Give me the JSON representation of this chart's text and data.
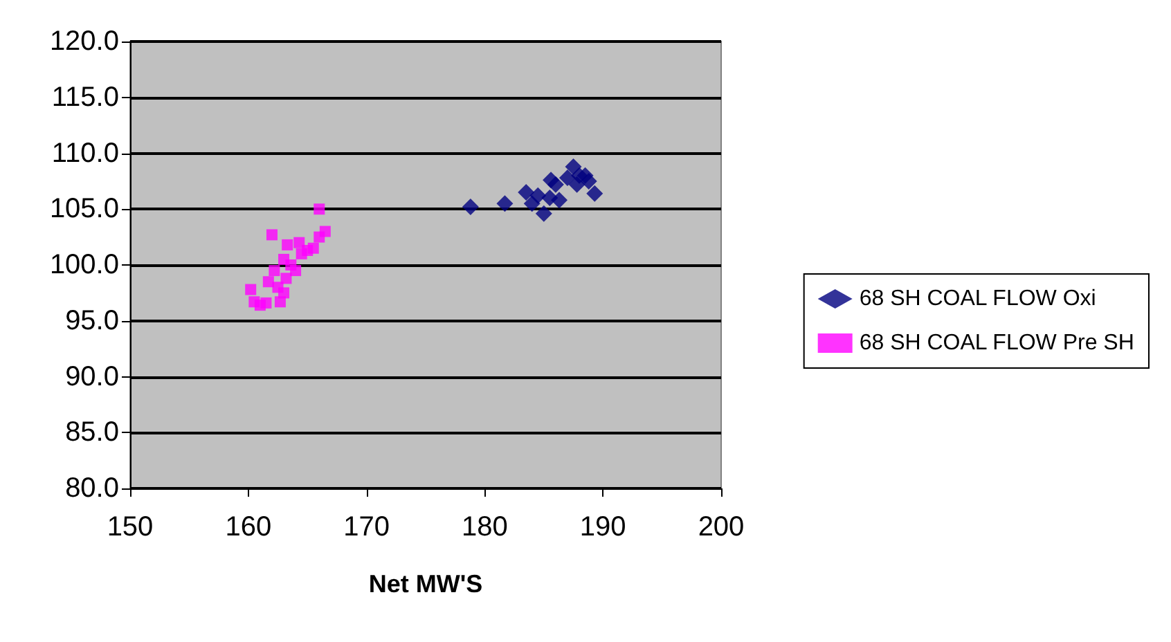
{
  "chart_data": {
    "type": "scatter",
    "xlabel": "Net MW'S",
    "xlim": [
      150,
      200
    ],
    "xticks": [
      150,
      160,
      170,
      180,
      190,
      200
    ],
    "ylim": [
      80,
      120
    ],
    "yticks": [
      {
        "value": 80,
        "label": "80.0"
      },
      {
        "value": 85,
        "label": "85.0"
      },
      {
        "value": 90,
        "label": "90.0"
      },
      {
        "value": 95,
        "label": "95.0"
      },
      {
        "value": 100,
        "label": "100.0"
      },
      {
        "value": 105,
        "label": "105.0"
      },
      {
        "value": 110,
        "label": "110.0"
      },
      {
        "value": 115,
        "label": "115.0"
      },
      {
        "value": 120,
        "label": "120.0"
      }
    ],
    "grid": "y",
    "legend": "right",
    "series": [
      {
        "name": "68 SH COAL FLOW Oxi",
        "color": "#000080",
        "marker": "diamond",
        "x": [
          178.8,
          181.7,
          183.5,
          184,
          184.5,
          185,
          185.6,
          186.3,
          187,
          187.5,
          187.8,
          188,
          188.5,
          188.8,
          189.3,
          186,
          185.5
        ],
        "values": [
          105.2,
          105.5,
          106.5,
          105.5,
          106.2,
          104.6,
          107.6,
          105.8,
          107.8,
          108.8,
          107.2,
          108,
          108,
          107.5,
          106.4,
          107.2,
          106
        ]
      },
      {
        "name": "68 SH COAL FLOW Pre SH",
        "color": "#ff00ff",
        "marker": "square",
        "x": [
          160.2,
          160.5,
          161,
          161.5,
          161.7,
          162,
          162.2,
          162.5,
          162.7,
          163,
          163.2,
          163.3,
          163.6,
          164.3,
          164.5,
          165,
          165.5,
          166,
          166,
          166.5,
          163,
          164
        ],
        "values": [
          97.8,
          96.7,
          96.4,
          96.6,
          98.5,
          102.7,
          99.5,
          98,
          96.7,
          100.5,
          98.8,
          101.8,
          100,
          102,
          101,
          101.3,
          101.5,
          102.5,
          105,
          103,
          97.5,
          99.5
        ]
      }
    ]
  }
}
